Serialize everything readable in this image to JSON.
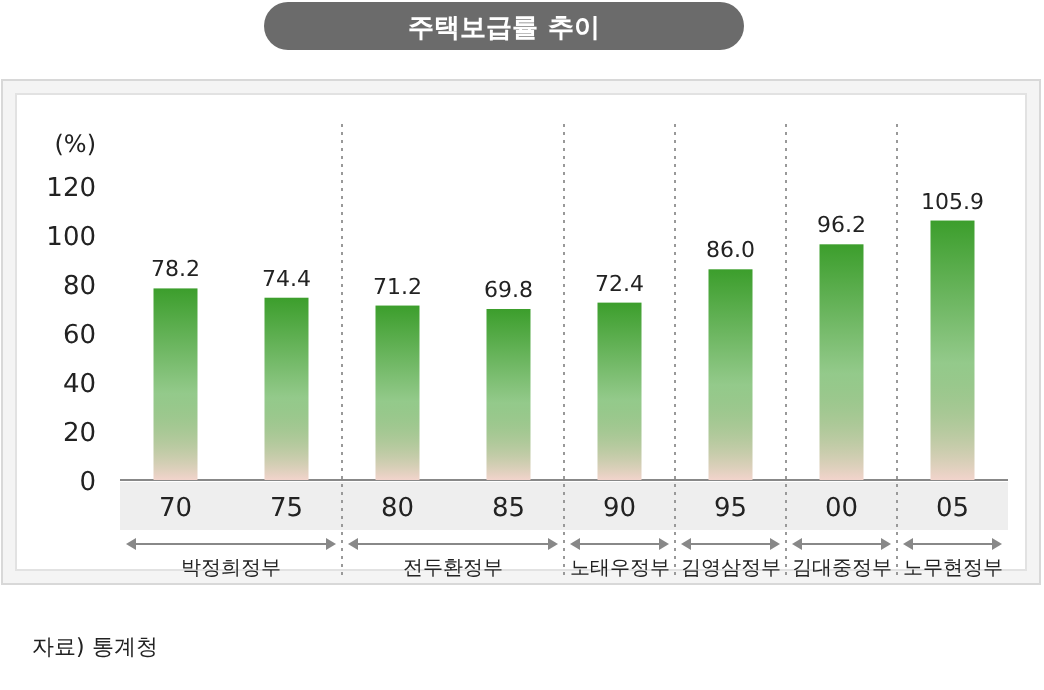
{
  "chart_data": {
    "type": "bar",
    "title": "주택보급률 추이",
    "ylabel": "(%)",
    "categories": [
      "70",
      "75",
      "80",
      "85",
      "90",
      "95",
      "00",
      "05"
    ],
    "values": [
      78.2,
      74.4,
      71.2,
      69.8,
      72.4,
      86.0,
      96.2,
      105.9
    ],
    "value_labels": [
      "78.2",
      "74.4",
      "71.2",
      "69.8",
      "72.4",
      "86.0",
      "96.2",
      "105.9"
    ],
    "color": "#3c9e2c",
    "ylim": [
      0,
      120
    ],
    "yticks": [
      0,
      20,
      40,
      60,
      80,
      100,
      120
    ],
    "annotations": [
      "박정희정부",
      "전두환정부",
      "노태우정부",
      "김영삼정부",
      "김대중정부",
      "노무현정부",
      "자료) 통계청"
    ]
  }
}
